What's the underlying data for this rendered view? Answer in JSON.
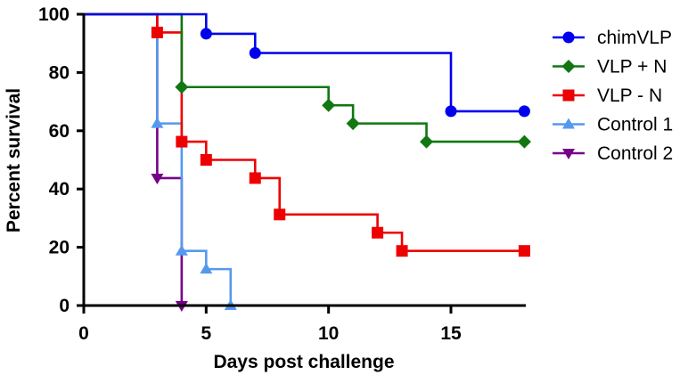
{
  "chart_data": {
    "type": "line",
    "subtype": "kaplan-meier step survival curve",
    "title": "",
    "xlabel": "Days post challenge",
    "ylabel": "Percent survival",
    "xlim": [
      0,
      18
    ],
    "ylim": [
      0,
      100
    ],
    "xticks": [
      0,
      5,
      10,
      15
    ],
    "yticks": [
      0,
      20,
      40,
      60,
      80,
      100
    ],
    "grid": false,
    "legend_position": "right",
    "series": [
      {
        "name": "chimVLP",
        "color": "#0000ee",
        "marker": "circle",
        "start": 100,
        "points": [
          [
            5,
            93.3
          ],
          [
            7,
            86.7
          ],
          [
            15,
            66.7
          ],
          [
            18,
            66.7
          ]
        ]
      },
      {
        "name": "VLP + N",
        "color": "#117711",
        "marker": "diamond",
        "start": 100,
        "points": [
          [
            4,
            75
          ],
          [
            10,
            68.75
          ],
          [
            11,
            62.5
          ],
          [
            14,
            56.25
          ],
          [
            18,
            56.25
          ]
        ]
      },
      {
        "name": "VLP - N",
        "color": "#ee0000",
        "marker": "square",
        "start": 100,
        "points": [
          [
            3,
            93.75
          ],
          [
            4,
            56.25
          ],
          [
            5,
            50
          ],
          [
            7,
            43.75
          ],
          [
            8,
            31.25
          ],
          [
            12,
            25
          ],
          [
            13,
            18.75
          ],
          [
            18,
            18.75
          ]
        ]
      },
      {
        "name": "Control 1",
        "color": "#5599ee",
        "marker": "triangle-up",
        "start": 100,
        "points": [
          [
            3,
            62.5
          ],
          [
            4,
            18.75
          ],
          [
            5,
            12.5
          ],
          [
            6,
            0
          ]
        ]
      },
      {
        "name": "Control 2",
        "color": "#770088",
        "marker": "triangle-down",
        "start": 100,
        "points": [
          [
            3,
            43.75
          ],
          [
            4,
            0
          ]
        ]
      }
    ]
  },
  "legend": {
    "items": [
      {
        "label": "chimVLP"
      },
      {
        "label": "VLP + N"
      },
      {
        "label": "VLP - N"
      },
      {
        "label": "Control 1"
      },
      {
        "label": "Control 2"
      }
    ]
  }
}
